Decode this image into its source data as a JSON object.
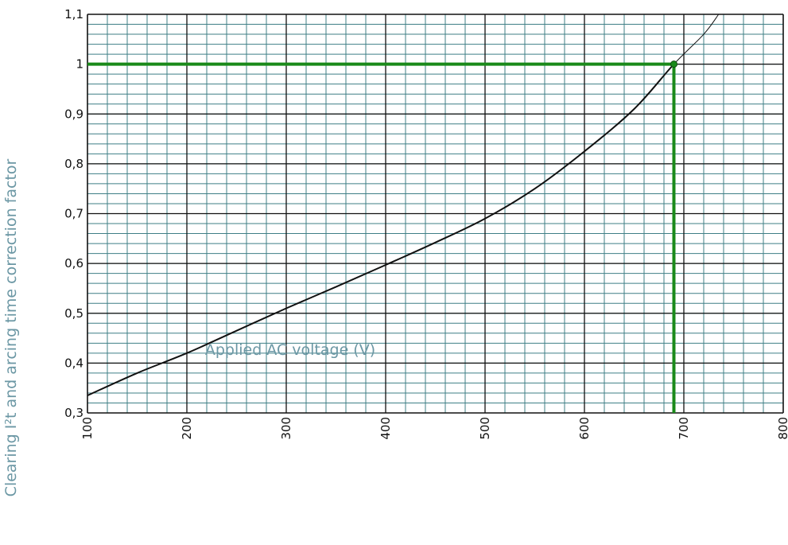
{
  "chart_data": {
    "type": "line",
    "title": "",
    "xlabel": "Applied AC voltage (V)",
    "ylabel": "Clearing I²t and arcing time correction factor",
    "xlim": [
      100,
      800
    ],
    "ylim": [
      0.3,
      1.1
    ],
    "x_major_step": 100,
    "x_minor_step": 20,
    "y_major_step": 0.1,
    "y_minor_step": 0.02,
    "x_tick_labels": [
      "100",
      "200",
      "300",
      "400",
      "500",
      "600",
      "700",
      "800"
    ],
    "y_tick_labels": [
      "0,3",
      "0,4",
      "0,5",
      "0,6",
      "0,7",
      "0,8",
      "0,9",
      "1",
      "1,1"
    ],
    "grid": true,
    "colors": {
      "minor_grid": "#3f7f86",
      "major_grid": "#111111",
      "curve": "#111111",
      "highlight": "#1a8a1a",
      "axis_title": "#6b97a4"
    },
    "series": [
      {
        "x": [
          100,
          150,
          200,
          250,
          300,
          350,
          400,
          450,
          500,
          550,
          600,
          650,
          690,
          720,
          735
        ],
        "y": [
          0.335,
          0.38,
          0.42,
          0.465,
          0.51,
          0.553,
          0.597,
          0.642,
          0.69,
          0.75,
          0.825,
          0.91,
          1.0,
          1.06,
          1.1
        ]
      }
    ],
    "highlight_point": {
      "x": 690,
      "y": 1.0
    }
  }
}
